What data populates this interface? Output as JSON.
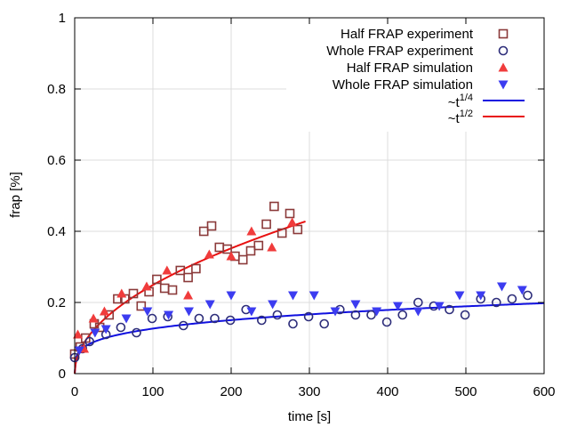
{
  "chart_data": {
    "type": "scatter",
    "xlabel": "time [s]",
    "ylabel": "frap [%]",
    "xlim": [
      0,
      600
    ],
    "ylim": [
      0,
      1
    ],
    "x_ticks": [
      0,
      100,
      200,
      300,
      400,
      500,
      600
    ],
    "y_ticks": [
      0,
      0.2,
      0.4,
      0.6,
      0.8,
      1
    ],
    "x_tick_labels": [
      "0",
      "100",
      "200",
      "300",
      "400",
      "500",
      "600"
    ],
    "y_tick_labels": [
      "0",
      "0.2",
      "0.4",
      "0.6",
      "0.8",
      "1"
    ],
    "grid": true,
    "legend_position": "top-right",
    "series": [
      {
        "name": "Half FRAP experiment",
        "marker": "open-square",
        "color": "#8b3a3a",
        "points": [
          [
            0,
            0.055
          ],
          [
            7,
            0.075
          ],
          [
            14,
            0.1
          ],
          [
            25,
            0.14
          ],
          [
            32,
            0.13
          ],
          [
            44,
            0.165
          ],
          [
            55,
            0.21
          ],
          [
            64,
            0.21
          ],
          [
            75,
            0.225
          ],
          [
            85,
            0.19
          ],
          [
            95,
            0.23
          ],
          [
            105,
            0.265
          ],
          [
            115,
            0.24
          ],
          [
            125,
            0.235
          ],
          [
            135,
            0.29
          ],
          [
            145,
            0.27
          ],
          [
            155,
            0.295
          ],
          [
            165,
            0.4
          ],
          [
            175,
            0.415
          ],
          [
            185,
            0.355
          ],
          [
            195,
            0.35
          ],
          [
            205,
            0.33
          ],
          [
            215,
            0.32
          ],
          [
            225,
            0.345
          ],
          [
            235,
            0.36
          ],
          [
            245,
            0.42
          ],
          [
            255,
            0.47
          ],
          [
            265,
            0.395
          ],
          [
            275,
            0.45
          ],
          [
            285,
            0.405
          ]
        ]
      },
      {
        "name": "Whole FRAP experiment",
        "marker": "open-circle",
        "color": "#2d2d7a",
        "points": [
          [
            0,
            0.045
          ],
          [
            10,
            0.07
          ],
          [
            19,
            0.09
          ],
          [
            40,
            0.11
          ],
          [
            59,
            0.13
          ],
          [
            79,
            0.115
          ],
          [
            99,
            0.155
          ],
          [
            119,
            0.16
          ],
          [
            139,
            0.135
          ],
          [
            159,
            0.155
          ],
          [
            179,
            0.155
          ],
          [
            199,
            0.15
          ],
          [
            219,
            0.18
          ],
          [
            239,
            0.15
          ],
          [
            259,
            0.165
          ],
          [
            279,
            0.14
          ],
          [
            299,
            0.16
          ],
          [
            319,
            0.14
          ],
          [
            339,
            0.18
          ],
          [
            359,
            0.165
          ],
          [
            379,
            0.165
          ],
          [
            399,
            0.145
          ],
          [
            419,
            0.165
          ],
          [
            439,
            0.2
          ],
          [
            459,
            0.19
          ],
          [
            479,
            0.18
          ],
          [
            499,
            0.165
          ],
          [
            519,
            0.21
          ],
          [
            539,
            0.2
          ],
          [
            559,
            0.21
          ],
          [
            579,
            0.22
          ]
        ]
      },
      {
        "name": "Half FRAP simulation",
        "marker": "triangle-up",
        "color": "#f03c3c",
        "points": [
          [
            4,
            0.11
          ],
          [
            12,
            0.07
          ],
          [
            24,
            0.155
          ],
          [
            38,
            0.175
          ],
          [
            60,
            0.225
          ],
          [
            92,
            0.245
          ],
          [
            118,
            0.29
          ],
          [
            145,
            0.22
          ],
          [
            172,
            0.335
          ],
          [
            200,
            0.33
          ],
          [
            226,
            0.4
          ],
          [
            252,
            0.355
          ],
          [
            278,
            0.425
          ]
        ]
      },
      {
        "name": "Whole FRAP simulation",
        "marker": "triangle-down",
        "color": "#3c3cf0",
        "points": [
          [
            6,
            0.065
          ],
          [
            26,
            0.115
          ],
          [
            40,
            0.125
          ],
          [
            66,
            0.155
          ],
          [
            93,
            0.175
          ],
          [
            120,
            0.165
          ],
          [
            146,
            0.175
          ],
          [
            173,
            0.195
          ],
          [
            200,
            0.22
          ],
          [
            226,
            0.175
          ],
          [
            253,
            0.195
          ],
          [
            279,
            0.22
          ],
          [
            306,
            0.22
          ],
          [
            333,
            0.175
          ],
          [
            359,
            0.195
          ],
          [
            386,
            0.175
          ],
          [
            413,
            0.19
          ],
          [
            439,
            0.175
          ],
          [
            466,
            0.19
          ],
          [
            492,
            0.22
          ],
          [
            519,
            0.22
          ],
          [
            546,
            0.245
          ],
          [
            572,
            0.235
          ]
        ]
      }
    ],
    "fit_lines": [
      {
        "name": "~t^{1/4}",
        "legend_base": "~t",
        "legend_exp": "1/4",
        "color": "#1010e0",
        "exponent": 0.25,
        "coefficient": 0.04,
        "x_range": [
          0,
          600
        ]
      },
      {
        "name": "~t^{1/2}",
        "legend_base": "~t",
        "legend_exp": "1/2",
        "color": "#e81010",
        "exponent": 0.5,
        "coefficient": 0.0249,
        "x_range": [
          0,
          295
        ]
      }
    ]
  }
}
